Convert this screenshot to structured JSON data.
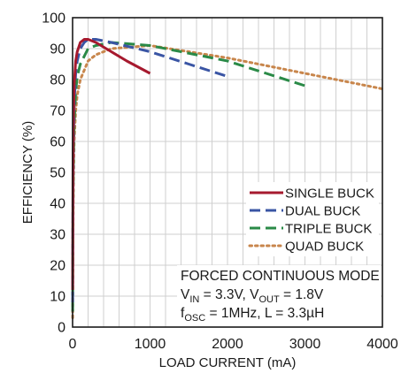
{
  "chart_data": {
    "type": "line",
    "xlabel": "LOAD CURRENT (mA)",
    "ylabel": "EFFICIENCY (%)",
    "xlim": [
      0,
      4000
    ],
    "ylim": [
      0,
      100
    ],
    "x_ticks": [
      0,
      1000,
      2000,
      3000,
      4000
    ],
    "x_tick_labels": [
      "0",
      "1000",
      "2000",
      "3000",
      "4000"
    ],
    "y_ticks": [
      0,
      10,
      20,
      30,
      40,
      50,
      60,
      70,
      80,
      90,
      100
    ],
    "y_tick_labels": [
      "0",
      "10",
      "20",
      "30",
      "40",
      "50",
      "60",
      "70",
      "80",
      "90",
      "100"
    ],
    "grid": true,
    "legend_position": "right-middle",
    "series": [
      {
        "name": "SINGLE BUCK",
        "color": "#a6192e",
        "style": "solid",
        "x": [
          1,
          3,
          5,
          10,
          20,
          40,
          60,
          100,
          150,
          200,
          300,
          500,
          700,
          1000
        ],
        "y": [
          12,
          30,
          50,
          66,
          78,
          86,
          89,
          92,
          93,
          93,
          92,
          89,
          86,
          82
        ]
      },
      {
        "name": "DUAL BUCK",
        "color": "#3a55a4",
        "style": "dash",
        "x": [
          1,
          3,
          5,
          10,
          20,
          40,
          60,
          100,
          150,
          200,
          300,
          500,
          1000,
          1500,
          2000
        ],
        "y": [
          8,
          25,
          40,
          58,
          72,
          82,
          86,
          90,
          92,
          93,
          93,
          92,
          89,
          85,
          81
        ]
      },
      {
        "name": "TRIPLE BUCK",
        "color": "#2a8a47",
        "style": "dash",
        "x": [
          1,
          3,
          5,
          10,
          20,
          40,
          60,
          100,
          200,
          300,
          500,
          1000,
          2000,
          3000
        ],
        "y": [
          5,
          20,
          35,
          52,
          66,
          76,
          81,
          85,
          90,
          91,
          92,
          91,
          86,
          78
        ]
      },
      {
        "name": "QUAD BUCK",
        "color": "#c8864c",
        "style": "dot",
        "x": [
          1,
          3,
          5,
          10,
          20,
          40,
          60,
          100,
          200,
          300,
          500,
          1000,
          2000,
          3000,
          4000
        ],
        "y": [
          3,
          15,
          28,
          45,
          60,
          70,
          75,
          80,
          86,
          88,
          90,
          91,
          87,
          82,
          77
        ]
      }
    ],
    "annotations": [
      {
        "id": "mode",
        "parts": [
          {
            "t": "FORCED CONTINUOUS MODE",
            "sub": false
          }
        ]
      },
      {
        "id": "vin-vout",
        "parts": [
          {
            "t": "V",
            "sub": false
          },
          {
            "t": "IN",
            "sub": true
          },
          {
            "t": " = 3.3V, V",
            "sub": false
          },
          {
            "t": "OUT",
            "sub": true
          },
          {
            "t": " = 1.8V",
            "sub": false
          }
        ]
      },
      {
        "id": "fosc-l",
        "parts": [
          {
            "t": "f",
            "sub": false
          },
          {
            "t": "OSC",
            "sub": true
          },
          {
            "t": " = 1MHz, L = 3.3µH",
            "sub": false
          }
        ]
      }
    ]
  }
}
